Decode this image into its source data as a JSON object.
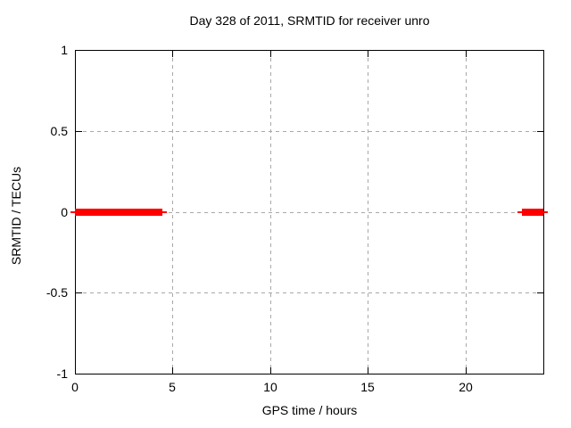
{
  "chart_data": {
    "type": "line",
    "title": "Day 328 of 2011, SRMTID for receiver unro",
    "xlabel": "GPS time / hours",
    "ylabel": "SRMTID / TECUs",
    "xlim": [
      0,
      24
    ],
    "ylim": [
      -1,
      1
    ],
    "x_ticks": [
      0,
      5,
      10,
      15,
      20
    ],
    "x_tick_labels": [
      "0",
      "5",
      "10",
      "15",
      "20"
    ],
    "y_ticks": [
      -1,
      -0.5,
      0,
      0.5,
      1
    ],
    "y_tick_labels": [
      "-1",
      "-0.5",
      "0",
      "0.5",
      "1"
    ],
    "grid": true,
    "legend": "none",
    "series": [
      {
        "name": "SRMTID",
        "color": "#ff0000",
        "segments": [
          {
            "x1": 0,
            "x2": 4.5,
            "y": 0
          },
          {
            "x1": 22.9,
            "x2": 24,
            "y": 0
          }
        ]
      }
    ],
    "colors": {
      "background": "#ffffff",
      "axis": "#000000",
      "grid": "#a8a8a8",
      "text": "#000000",
      "series_red": "#ff0000"
    }
  }
}
